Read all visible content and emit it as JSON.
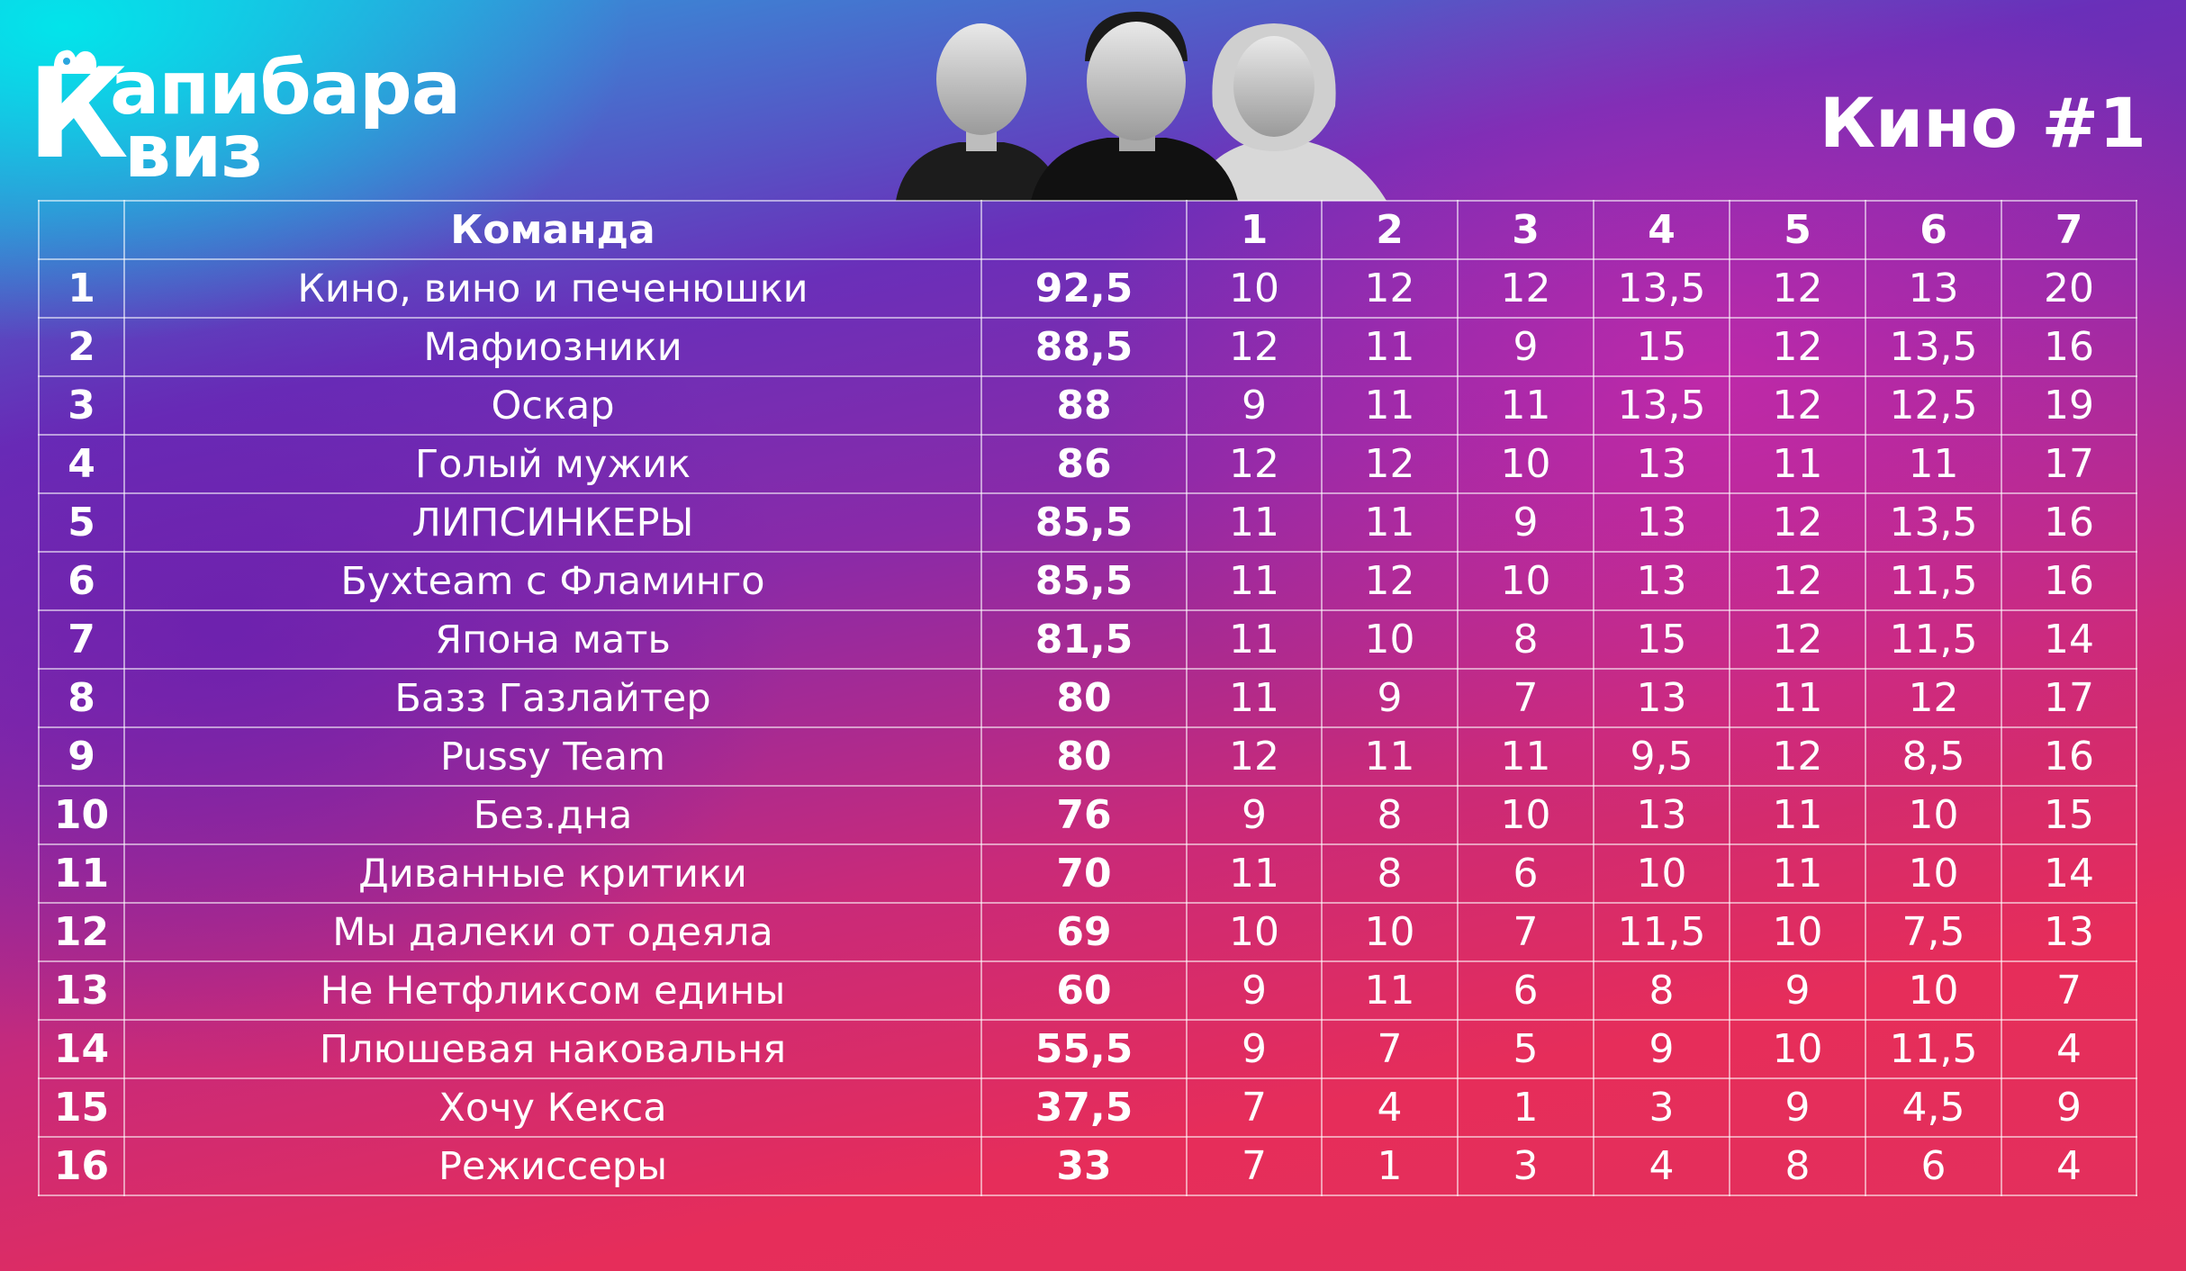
{
  "logo": {
    "letter": "К",
    "line1": "апибара",
    "line2": "виз"
  },
  "title": "Кино #1",
  "colors": {
    "accent_cyan": "#00e8eb",
    "accent_purple": "#6a2fb9",
    "accent_pink": "#e62d5a",
    "grid": "#ffffff"
  },
  "table": {
    "headers": [
      "",
      "Команда",
      "",
      "1",
      "2",
      "3",
      "4",
      "5",
      "6",
      "7"
    ],
    "rows": [
      {
        "place": "1",
        "team": "Кино, вино и печенюшки",
        "total": "92,5",
        "rounds": [
          "10",
          "12",
          "12",
          "13,5",
          "12",
          "13",
          "20"
        ]
      },
      {
        "place": "2",
        "team": "Мафиозники",
        "total": "88,5",
        "rounds": [
          "12",
          "11",
          "9",
          "15",
          "12",
          "13,5",
          "16"
        ]
      },
      {
        "place": "3",
        "team": "Оскар",
        "total": "88",
        "rounds": [
          "9",
          "11",
          "11",
          "13,5",
          "12",
          "12,5",
          "19"
        ]
      },
      {
        "place": "4",
        "team": "Голый мужик",
        "total": "86",
        "rounds": [
          "12",
          "12",
          "10",
          "13",
          "11",
          "11",
          "17"
        ]
      },
      {
        "place": "5",
        "team": "ЛИПСИНКЕРЫ",
        "total": "85,5",
        "rounds": [
          "11",
          "11",
          "9",
          "13",
          "12",
          "13,5",
          "16"
        ]
      },
      {
        "place": "6",
        "team": "Бухteam с Фламинго",
        "total": "85,5",
        "rounds": [
          "11",
          "12",
          "10",
          "13",
          "12",
          "11,5",
          "16"
        ]
      },
      {
        "place": "7",
        "team": "Япона мать",
        "total": "81,5",
        "rounds": [
          "11",
          "10",
          "8",
          "15",
          "12",
          "11,5",
          "14"
        ]
      },
      {
        "place": "8",
        "team": "Базз Газлайтер",
        "total": "80",
        "rounds": [
          "11",
          "9",
          "7",
          "13",
          "11",
          "12",
          "17"
        ]
      },
      {
        "place": "9",
        "team": "Pussy Team",
        "total": "80",
        "rounds": [
          "12",
          "11",
          "11",
          "9,5",
          "12",
          "8,5",
          "16"
        ]
      },
      {
        "place": "10",
        "team": "Без.дна",
        "total": "76",
        "rounds": [
          "9",
          "8",
          "10",
          "13",
          "11",
          "10",
          "15"
        ]
      },
      {
        "place": "11",
        "team": "Диванные критики",
        "total": "70",
        "rounds": [
          "11",
          "8",
          "6",
          "10",
          "11",
          "10",
          "14"
        ]
      },
      {
        "place": "12",
        "team": "Мы далеки от одеяла",
        "total": "69",
        "rounds": [
          "10",
          "10",
          "7",
          "11,5",
          "10",
          "7,5",
          "13"
        ]
      },
      {
        "place": "13",
        "team": "Не Нетфликсом едины",
        "total": "60",
        "rounds": [
          "9",
          "11",
          "6",
          "8",
          "9",
          "10",
          "7"
        ]
      },
      {
        "place": "14",
        "team": "Плюшевая наковальня",
        "total": "55,5",
        "rounds": [
          "9",
          "7",
          "5",
          "9",
          "10",
          "11,5",
          "4"
        ]
      },
      {
        "place": "15",
        "team": "Хочу Кекса",
        "total": "37,5",
        "rounds": [
          "7",
          "4",
          "1",
          "3",
          "9",
          "4,5",
          "9"
        ]
      },
      {
        "place": "16",
        "team": "Режиссеры",
        "total": "33",
        "rounds": [
          "7",
          "1",
          "3",
          "4",
          "8",
          "6",
          "4"
        ]
      }
    ]
  }
}
